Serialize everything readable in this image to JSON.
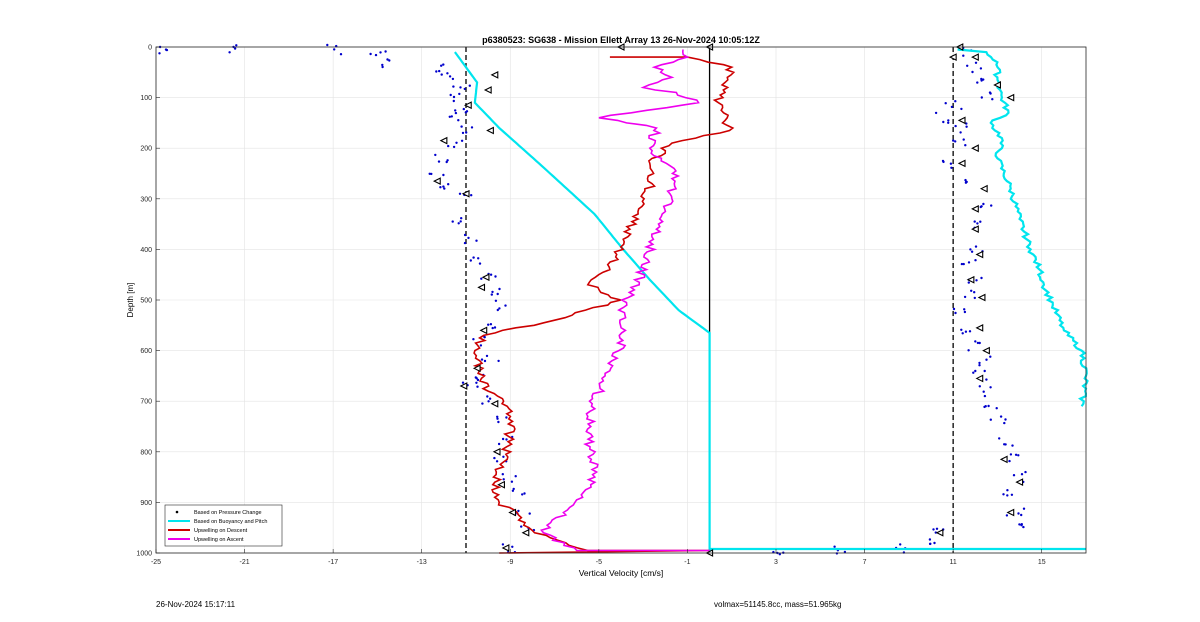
{
  "chart_data": {
    "type": "line",
    "title": "p6380523: SG638 - Mission Ellett Array 13 26-Nov-2024 10:05:12Z",
    "xlabel": "Vertical Velocity [cm/s]",
    "ylabel": "Depth [m]",
    "xlim": [
      -25,
      17
    ],
    "ylim": [
      1000,
      0
    ],
    "y_reversed": true,
    "grid": true,
    "x_ticks": [
      -25,
      -21,
      -17,
      -13,
      -9,
      -5,
      -1,
      3,
      7,
      11,
      15
    ],
    "y_ticks": [
      0,
      100,
      200,
      300,
      400,
      500,
      600,
      700,
      800,
      900,
      1000
    ],
    "reference_lines": [
      {
        "x": -11,
        "style": "dashed",
        "color": "#000000"
      },
      {
        "x": 0,
        "style": "solid",
        "color": "#000000"
      },
      {
        "x": 11,
        "style": "dashed",
        "color": "#000000"
      }
    ],
    "legend_position": "bottom-left",
    "series": [
      {
        "name": "Based on Pressure Change",
        "style": "dots",
        "color": "#0000cc",
        "points": [
          [
            -24.5,
            5
          ],
          [
            -21.5,
            5
          ],
          [
            -17,
            5
          ],
          [
            -15,
            15
          ],
          [
            -14.5,
            30
          ],
          [
            -12,
            40
          ],
          [
            -11.8,
            60
          ],
          [
            -11.2,
            80
          ],
          [
            -11.5,
            100
          ],
          [
            -11.3,
            120
          ],
          [
            -11.5,
            140
          ],
          [
            -10.8,
            160
          ],
          [
            -11.5,
            190
          ],
          [
            -12,
            220
          ],
          [
            -12.3,
            260
          ],
          [
            -11.8,
            280
          ],
          [
            -11,
            300
          ],
          [
            -11.2,
            340
          ],
          [
            -10.7,
            380
          ],
          [
            -10.4,
            420
          ],
          [
            -10,
            450
          ],
          [
            -9.8,
            480
          ],
          [
            -9.6,
            510
          ],
          [
            -10,
            550
          ],
          [
            -10.3,
            580
          ],
          [
            -9.9,
            620
          ],
          [
            -10.3,
            650
          ],
          [
            -10.8,
            670
          ],
          [
            -9.9,
            700
          ],
          [
            -9.5,
            740
          ],
          [
            -9.2,
            780
          ],
          [
            -9.5,
            810
          ],
          [
            -9,
            850
          ],
          [
            -8.7,
            880
          ],
          [
            -8.5,
            920
          ],
          [
            -8.2,
            950
          ],
          [
            -9,
            990
          ],
          [
            11.5,
            10
          ],
          [
            12,
            40
          ],
          [
            12.3,
            70
          ],
          [
            12.7,
            100
          ],
          [
            11,
            115
          ],
          [
            10.5,
            140
          ],
          [
            11.5,
            160
          ],
          [
            11.4,
            190
          ],
          [
            10.9,
            230
          ],
          [
            11.9,
            270
          ],
          [
            12.4,
            310
          ],
          [
            12,
            350
          ],
          [
            12.1,
            400
          ],
          [
            11.8,
            430
          ],
          [
            12.1,
            460
          ],
          [
            11.6,
            490
          ],
          [
            11.2,
            520
          ],
          [
            11.7,
            560
          ],
          [
            12.1,
            590
          ],
          [
            12.4,
            620
          ],
          [
            12.3,
            650
          ],
          [
            12.6,
            680
          ],
          [
            12.8,
            710
          ],
          [
            13,
            740
          ],
          [
            13.3,
            780
          ],
          [
            13.7,
            810
          ],
          [
            13.9,
            850
          ],
          [
            13.4,
            880
          ],
          [
            13.8,
            920
          ],
          [
            14.2,
            950
          ],
          [
            10.4,
            960
          ],
          [
            10.3,
            980
          ],
          [
            8.5,
            990
          ],
          [
            6,
            995
          ],
          [
            3,
            995
          ]
        ]
      },
      {
        "name": "Based on Buoyancy and Pitch",
        "style": "line",
        "color": "#00e5ee",
        "points": [
          [
            -11.5,
            10
          ],
          [
            -11,
            40
          ],
          [
            -10.5,
            70
          ],
          [
            -10.6,
            110
          ],
          [
            -9.5,
            160
          ],
          [
            -7.7,
            230
          ],
          [
            -5.2,
            330
          ],
          [
            -3.9,
            400
          ],
          [
            -2.7,
            460
          ],
          [
            -1.4,
            520
          ],
          [
            0,
            565
          ],
          [
            0,
            1000
          ],
          [
            0,
            992
          ],
          [
            17,
            992
          ]
        ],
        "points_ascent": [
          [
            11.2,
            5
          ],
          [
            12.5,
            10
          ],
          [
            13,
            30
          ],
          [
            13,
            60
          ],
          [
            13.2,
            100
          ],
          [
            13.5,
            130
          ],
          [
            12.7,
            150
          ],
          [
            13.2,
            180
          ],
          [
            13,
            220
          ],
          [
            13.6,
            280
          ],
          [
            14,
            340
          ],
          [
            14.5,
            400
          ],
          [
            14.9,
            440
          ],
          [
            15.1,
            470
          ],
          [
            15.5,
            510
          ],
          [
            16,
            560
          ],
          [
            16.8,
            600
          ],
          [
            17,
            650
          ],
          [
            16.8,
            710
          ]
        ]
      },
      {
        "name": "Upwelling on Descent",
        "style": "line",
        "color": "#cc0000",
        "points": [
          [
            -9.5,
            1000
          ],
          [
            0,
            995
          ],
          [
            -5.5,
            995
          ],
          [
            -7.9,
            960
          ],
          [
            -8.5,
            930
          ],
          [
            -9.5,
            900
          ],
          [
            -9.7,
            860
          ],
          [
            -9.3,
            820
          ],
          [
            -9.1,
            780
          ],
          [
            -8.9,
            740
          ],
          [
            -9.3,
            700
          ],
          [
            -10,
            680
          ],
          [
            -10.4,
            640
          ],
          [
            -10.6,
            600
          ],
          [
            -10.2,
            570
          ],
          [
            -7,
            540
          ],
          [
            -4,
            500
          ],
          [
            -5.5,
            470
          ],
          [
            -4.5,
            440
          ],
          [
            -3.9,
            380
          ],
          [
            -3.2,
            320
          ],
          [
            -2.6,
            270
          ],
          [
            -2.7,
            230
          ],
          [
            -1.7,
            190
          ],
          [
            0.9,
            165
          ],
          [
            0.4,
            110
          ],
          [
            0.8,
            60
          ],
          [
            1,
            40
          ],
          [
            -1,
            20
          ],
          [
            -4.5,
            20
          ]
        ]
      },
      {
        "name": "Upwelling on Ascent",
        "style": "line",
        "color": "#ee00ee",
        "points": [
          [
            0,
            995
          ],
          [
            -6,
            995
          ],
          [
            -7.5,
            960
          ],
          [
            -6.6,
            920
          ],
          [
            -5.7,
            880
          ],
          [
            -5.1,
            840
          ],
          [
            -5.4,
            790
          ],
          [
            -5.4,
            720
          ],
          [
            -4.8,
            660
          ],
          [
            -4.1,
            600
          ],
          [
            -3.8,
            560
          ],
          [
            -4.1,
            520
          ],
          [
            -3.4,
            480
          ],
          [
            -2.8,
            420
          ],
          [
            -2.4,
            360
          ],
          [
            -1.7,
            300
          ],
          [
            -1.6,
            240
          ],
          [
            -2.7,
            200
          ],
          [
            -2.4,
            160
          ],
          [
            -5,
            140
          ],
          [
            -0.5,
            110
          ],
          [
            -1.5,
            90
          ],
          [
            -3,
            80
          ],
          [
            -1.7,
            60
          ],
          [
            -2.5,
            40
          ],
          [
            -1,
            20
          ],
          [
            -1.2,
            5
          ]
        ]
      }
    ],
    "marker_series": {
      "name": "triangle-markers",
      "color": "#000000",
      "points": [
        [
          -4,
          0
        ],
        [
          0,
          0
        ],
        [
          -9.7,
          55
        ],
        [
          -10,
          85
        ],
        [
          -10.9,
          115
        ],
        [
          -9.9,
          165
        ],
        [
          -12,
          185
        ],
        [
          -12.3,
          265
        ],
        [
          -11,
          290
        ],
        [
          -10.1,
          455
        ],
        [
          -10.3,
          475
        ],
        [
          -10.2,
          560
        ],
        [
          -10.5,
          635
        ],
        [
          -11.1,
          670
        ],
        [
          -9.7,
          705
        ],
        [
          -9.6,
          800
        ],
        [
          -9.4,
          865
        ],
        [
          -8.9,
          920
        ],
        [
          -8.3,
          960
        ],
        [
          -9.2,
          990
        ],
        [
          0,
          1000
        ],
        [
          11.3,
          0
        ],
        [
          12,
          20
        ],
        [
          13,
          75
        ],
        [
          13.6,
          100
        ],
        [
          11.4,
          145
        ],
        [
          12,
          200
        ],
        [
          11.4,
          230
        ],
        [
          12.4,
          280
        ],
        [
          12,
          320
        ],
        [
          12,
          360
        ],
        [
          12.2,
          410
        ],
        [
          11.8,
          460
        ],
        [
          12.3,
          495
        ],
        [
          12.2,
          555
        ],
        [
          12.5,
          600
        ],
        [
          12.2,
          655
        ],
        [
          13.3,
          815
        ],
        [
          14,
          860
        ],
        [
          13.6,
          920
        ],
        [
          10.4,
          960
        ],
        [
          11,
          20
        ]
      ]
    }
  },
  "footer": {
    "left": "26-Nov-2024 15:17:11",
    "right": "volmax=51145.8cc, mass=51.965kg"
  }
}
